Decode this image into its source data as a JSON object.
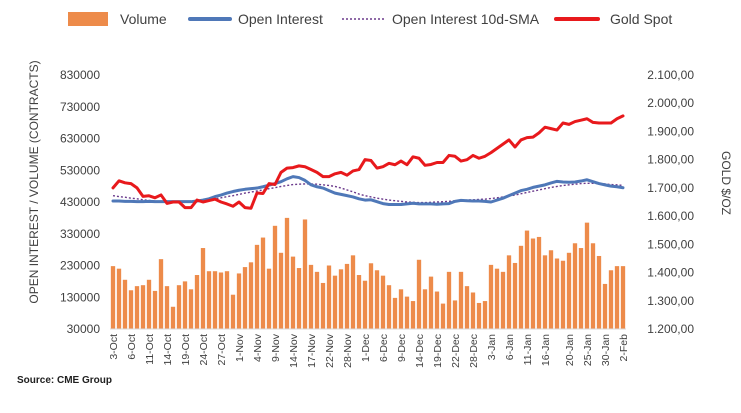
{
  "legend": {
    "volume": "Volume",
    "open_interest": "Open Interest",
    "sma": "Open Interest 10d-SMA",
    "gold_spot": "Gold Spot"
  },
  "axes": {
    "left_title": "OPEN INTEREST / VOLUME (CONTRACTS)",
    "right_title": "GOLD $/OZ",
    "left_ticks": [
      "30000",
      "130000",
      "230000",
      "330000",
      "430000",
      "530000",
      "630000",
      "730000",
      "830000"
    ],
    "right_ticks": [
      "1.200,00",
      "1.300,00",
      "1.400,00",
      "1.500,00",
      "1.600,00",
      "1.700,00",
      "1.800,00",
      "1.900,00",
      "2.000,00",
      "2.100,00"
    ],
    "x_ticks": [
      "3-Oct",
      "6-Oct",
      "11-Oct",
      "14-Oct",
      "19-Oct",
      "24-Oct",
      "27-Oct",
      "1-Nov",
      "4-Nov",
      "9-Nov",
      "14-Nov",
      "17-Nov",
      "22-Nov",
      "28-Nov",
      "1-Dec",
      "6-Dec",
      "9-Dec",
      "14-Dec",
      "19-Dec",
      "22-Dec",
      "28-Dec",
      "3-Jan",
      "6-Jan",
      "11-Jan",
      "16-Jan",
      "20-Jan",
      "25-Jan",
      "30-Jan",
      "2-Feb"
    ]
  },
  "source": "Source: CME Group",
  "colors": {
    "volume": "#ED8B4A",
    "open_interest": "#4F78B8",
    "sma": "#6B3A8C",
    "gold_spot": "#E8191C",
    "text": "#404040"
  },
  "chart_data": {
    "type": "bar",
    "x": [
      "3-Oct",
      "4-Oct",
      "5-Oct",
      "6-Oct",
      "7-Oct",
      "10-Oct",
      "11-Oct",
      "12-Oct",
      "13-Oct",
      "14-Oct",
      "17-Oct",
      "18-Oct",
      "19-Oct",
      "20-Oct",
      "21-Oct",
      "24-Oct",
      "25-Oct",
      "26-Oct",
      "27-Oct",
      "28-Oct",
      "31-Oct",
      "1-Nov",
      "2-Nov",
      "3-Nov",
      "4-Nov",
      "7-Nov",
      "8-Nov",
      "9-Nov",
      "10-Nov",
      "11-Nov",
      "14-Nov",
      "15-Nov",
      "16-Nov",
      "17-Nov",
      "18-Nov",
      "21-Nov",
      "22-Nov",
      "23-Nov",
      "25-Nov",
      "28-Nov",
      "29-Nov",
      "30-Nov",
      "1-Dec",
      "2-Dec",
      "5-Dec",
      "6-Dec",
      "7-Dec",
      "8-Dec",
      "9-Dec",
      "12-Dec",
      "13-Dec",
      "14-Dec",
      "15-Dec",
      "16-Dec",
      "19-Dec",
      "20-Dec",
      "21-Dec",
      "22-Dec",
      "23-Dec",
      "27-Dec",
      "28-Dec",
      "29-Dec",
      "30-Dec",
      "3-Jan",
      "4-Jan",
      "5-Jan",
      "6-Jan",
      "9-Jan",
      "10-Jan",
      "11-Jan",
      "12-Jan",
      "13-Jan",
      "16-Jan",
      "17-Jan",
      "18-Jan",
      "19-Jan",
      "20-Jan",
      "23-Jan",
      "24-Jan",
      "25-Jan",
      "26-Jan",
      "27-Jan",
      "30-Jan",
      "31-Jan",
      "1-Feb",
      "2-Feb"
    ],
    "series": [
      {
        "name": "Volume",
        "axis": "left",
        "kind": "bar",
        "values": [
          228000,
          220000,
          185000,
          152000,
          165000,
          168000,
          185000,
          150000,
          250000,
          165000,
          100000,
          168000,
          180000,
          155000,
          200000,
          285000,
          212000,
          212000,
          208000,
          212000,
          138000,
          205000,
          225000,
          240000,
          295000,
          318000,
          220000,
          355000,
          270000,
          380000,
          258000,
          222000,
          375000,
          232000,
          210000,
          175000,
          230000,
          198000,
          218000,
          235000,
          262000,
          200000,
          182000,
          237000,
          215000,
          198000,
          168000,
          128000,
          155000,
          132000,
          118000,
          248000,
          155000,
          195000,
          148000,
          110000,
          210000,
          120000,
          210000,
          165000,
          145000,
          112000,
          118000,
          232000,
          220000,
          210000,
          262000,
          238000,
          292000,
          340000,
          315000,
          320000,
          262000,
          278000,
          252000,
          245000,
          270000,
          300000,
          285000,
          365000,
          300000,
          260000,
          172000,
          215000,
          228000,
          228000
        ]
      },
      {
        "name": "Open Interest",
        "axis": "left",
        "kind": "line",
        "values": [
          433000,
          433000,
          432000,
          432000,
          431000,
          431000,
          432000,
          431000,
          431000,
          431000,
          431000,
          431000,
          431000,
          431000,
          433000,
          436000,
          440000,
          447000,
          452000,
          458000,
          463000,
          467000,
          470000,
          472000,
          474000,
          478000,
          483000,
          488000,
          494000,
          503000,
          510000,
          507000,
          498000,
          484000,
          478000,
          474000,
          466000,
          458000,
          454000,
          450000,
          446000,
          440000,
          436000,
          437000,
          431000,
          425000,
          422000,
          422000,
          422000,
          424000,
          426000,
          424000,
          424000,
          424000,
          423000,
          424000,
          425000,
          432000,
          435000,
          434000,
          433000,
          433000,
          432000,
          430000,
          436000,
          442000,
          450000,
          458000,
          466000,
          470000,
          476000,
          480000,
          484000,
          490000,
          495000,
          493000,
          492000,
          493000,
          496000,
          500000,
          494000,
          488000,
          484000,
          480000,
          478000,
          475000
        ]
      },
      {
        "name": "Open Interest 10d-SMA",
        "axis": "left",
        "kind": "line",
        "values": [
          450000,
          447000,
          445000,
          442000,
          440000,
          437000,
          435000,
          433000,
          432000,
          431000,
          431000,
          431000,
          431000,
          432000,
          433000,
          435000,
          437000,
          440000,
          443000,
          447000,
          450000,
          454000,
          458000,
          461000,
          465000,
          468000,
          472000,
          475000,
          479000,
          482000,
          485000,
          486000,
          487000,
          487000,
          486000,
          484000,
          482000,
          479000,
          474000,
          468000,
          462000,
          455000,
          450000,
          446000,
          442000,
          439000,
          436000,
          434000,
          432000,
          430000,
          429000,
          428000,
          428000,
          429000,
          430000,
          431000,
          432000,
          434000,
          435000,
          436000,
          437000,
          438000,
          439000,
          441000,
          443000,
          446000,
          449000,
          452000,
          456000,
          460000,
          464000,
          468000,
          472000,
          476000,
          479000,
          482000,
          484000,
          486000,
          488000,
          489000,
          489000,
          488000,
          487000,
          485000,
          484000,
          482000
        ]
      },
      {
        "name": "Gold Spot",
        "axis": "right",
        "kind": "line",
        "values": [
          1700,
          1725,
          1718,
          1715,
          1700,
          1670,
          1672,
          1665,
          1675,
          1645,
          1650,
          1650,
          1630,
          1630,
          1657,
          1650,
          1655,
          1660,
          1650,
          1643,
          1635,
          1650,
          1630,
          1628,
          1682,
          1680,
          1715,
          1712,
          1755,
          1770,
          1772,
          1778,
          1775,
          1765,
          1755,
          1740,
          1740,
          1750,
          1755,
          1745,
          1760,
          1765,
          1800,
          1797,
          1770,
          1775,
          1787,
          1782,
          1795,
          1782,
          1810,
          1805,
          1780,
          1783,
          1790,
          1790,
          1815,
          1812,
          1795,
          1800,
          1815,
          1805,
          1812,
          1825,
          1840,
          1855,
          1870,
          1845,
          1870,
          1878,
          1880,
          1895,
          1915,
          1910,
          1905,
          1930,
          1925,
          1935,
          1940,
          1945,
          1932,
          1930,
          1930,
          1930,
          1945,
          1955
        ]
      }
    ],
    "y_left_range": [
      30000,
      830000
    ],
    "y_right_range": [
      1200,
      2100
    ],
    "y_left_label": "OPEN INTEREST / VOLUME (CONTRACTS)",
    "y_right_label": "GOLD $/OZ",
    "grid": false,
    "legend_position": "top"
  }
}
